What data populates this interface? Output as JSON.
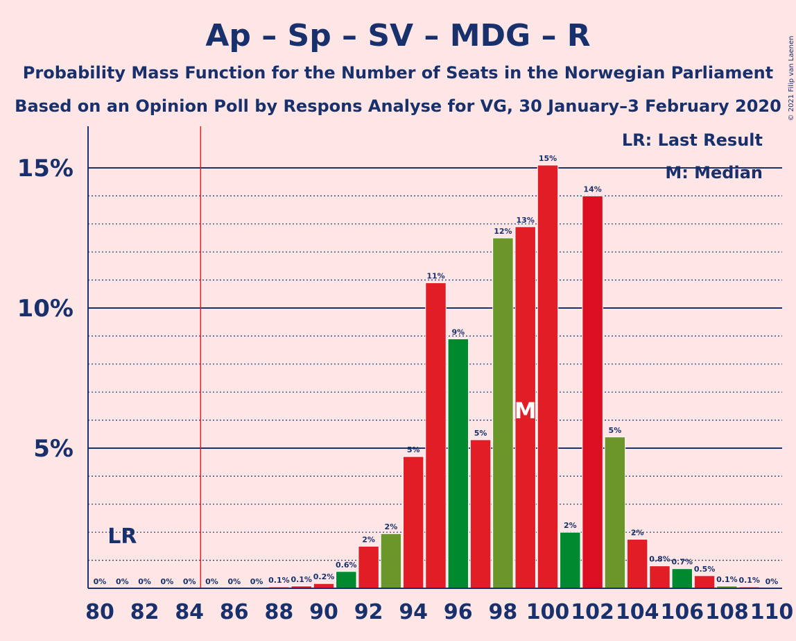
{
  "chart_data": {
    "type": "bar",
    "title": "Ap – Sp – SV – MDG – R",
    "subtitle1": "Probability Mass Function for the Number of Seats in the Norwegian Parliament",
    "subtitle2": "Based on an Opinion Poll by Respons Analyse for VG, 30 January–3 February 2020",
    "copyright": "© 2021 Filip van Laenen",
    "legend": {
      "lr": "LR: Last Result",
      "m": "M: Median"
    },
    "lr_marker": "LR",
    "median_marker": "M",
    "last_result_seat": 81,
    "majority_line_seat": 84.5,
    "median_seat": 99,
    "ylim": [
      0,
      16.5
    ],
    "y_major_ticks": [
      {
        "value": 5,
        "label": "5%"
      },
      {
        "value": 10,
        "label": "10%"
      },
      {
        "value": 15,
        "label": "15%"
      }
    ],
    "y_minor_ticks": [
      1,
      2,
      3,
      4,
      6,
      7,
      8,
      9,
      11,
      12,
      13,
      14
    ],
    "x_tick_labels": [
      "80",
      "82",
      "84",
      "86",
      "88",
      "90",
      "92",
      "94",
      "96",
      "98",
      "100",
      "102",
      "104",
      "106",
      "108",
      "110"
    ],
    "x": [
      80,
      81,
      82,
      83,
      84,
      85,
      86,
      87,
      88,
      89,
      90,
      91,
      92,
      93,
      94,
      95,
      96,
      97,
      98,
      99,
      100,
      101,
      102,
      103,
      104,
      105,
      106,
      107,
      108,
      109,
      110
    ],
    "values": [
      0,
      0,
      0,
      0,
      0,
      0,
      0,
      0,
      0.05,
      0.08,
      0.17,
      0.6,
      1.5,
      1.95,
      4.7,
      10.9,
      8.9,
      5.3,
      12.5,
      12.9,
      15.1,
      2.0,
      14.0,
      5.4,
      1.75,
      0.8,
      0.7,
      0.45,
      0.08,
      0.05,
      0
    ],
    "data_labels": [
      "0%",
      "0%",
      "0%",
      "0%",
      "0%",
      "0%",
      "0%",
      "0%",
      "0.1%",
      "0.1%",
      "0.2%",
      "0.6%",
      "2%",
      "2%",
      "5%",
      "11%",
      "9%",
      "5%",
      "12%",
      "13%",
      "15%",
      "2%",
      "14%",
      "5%",
      "2%",
      "0.8%",
      "0.7%",
      "0.5%",
      "0.1%",
      "0.1%",
      "0%"
    ],
    "colors": {
      "background": "#ffe6e6",
      "text": "#18306b",
      "red": "#e11d26",
      "red_dark": "#dc0e21",
      "green": "#00892e",
      "olive": "#6a962a",
      "lr_line": "#e11d26"
    },
    "bar_colors": [
      "red",
      "red",
      "red",
      "red",
      "red",
      "red",
      "red",
      "red",
      "red",
      "red",
      "red",
      "green",
      "red",
      "olive",
      "red",
      "red",
      "green",
      "red",
      "olive",
      "red",
      "red",
      "green",
      "red_dark",
      "olive",
      "red",
      "red",
      "green",
      "red",
      "olive",
      "red",
      "red"
    ]
  }
}
